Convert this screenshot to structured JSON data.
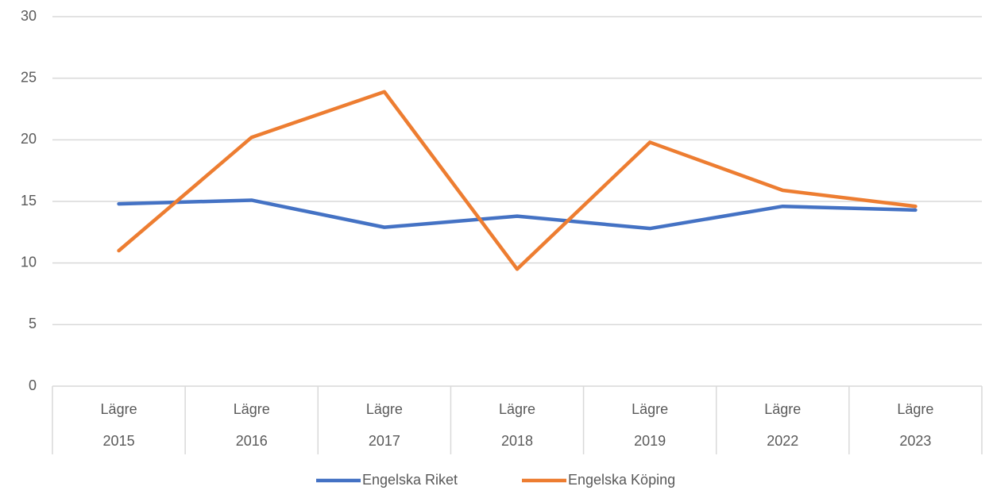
{
  "chart_data": {
    "type": "line",
    "categories": [
      "Lägre",
      "Lägre",
      "Lägre",
      "Lägre",
      "Lägre",
      "Lägre",
      "Lägre"
    ],
    "category_groups": [
      "2015",
      "2016",
      "2017",
      "2018",
      "2019",
      "2022",
      "2023"
    ],
    "series": [
      {
        "name": "Engelska Riket",
        "color": "#4472c4",
        "values": [
          14.8,
          15.1,
          12.9,
          13.8,
          12.8,
          14.6,
          14.3
        ]
      },
      {
        "name": "Engelska Köping",
        "color": "#ed7d31",
        "values": [
          11.0,
          20.2,
          23.9,
          9.5,
          19.8,
          15.9,
          14.6
        ]
      }
    ],
    "ylim": [
      0,
      30
    ],
    "yticks": [
      0,
      5,
      10,
      15,
      20,
      25,
      30
    ],
    "grid": true,
    "legend": "bottom"
  }
}
